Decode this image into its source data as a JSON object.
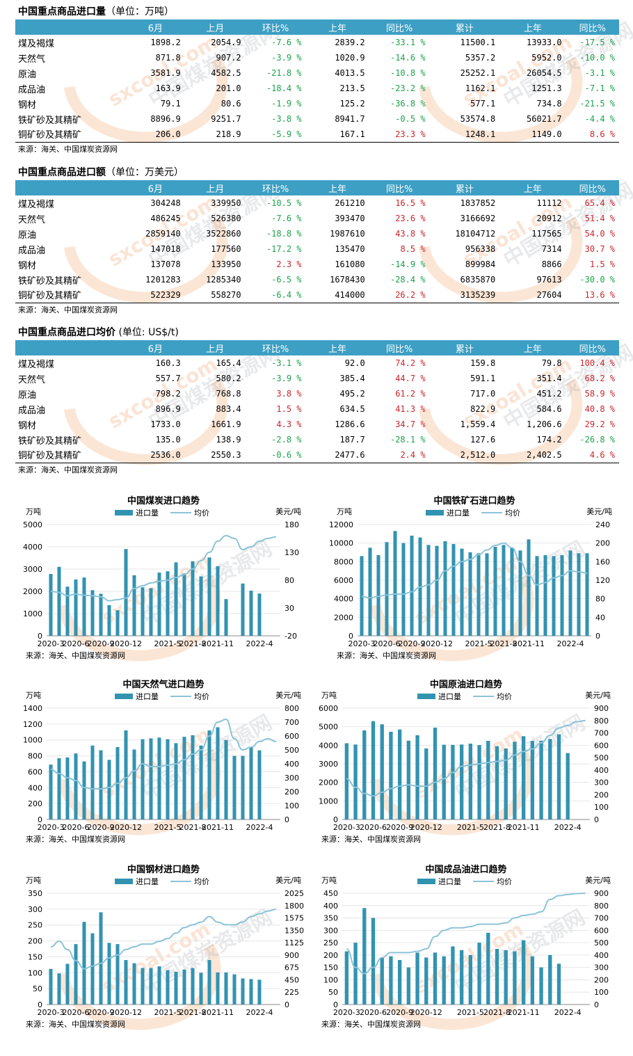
{
  "tables": [
    {
      "title": "中国重点商品进口量",
      "unit": "（单位：万吨）",
      "headers": [
        "",
        "6月",
        "上月",
        "环比%",
        "上年",
        "同比%",
        "累计",
        "上年",
        "同比%"
      ],
      "rows": [
        [
          "煤及褐煤",
          "1898.2",
          "2054.9",
          "-7.6 %",
          "2839.2",
          "-33.1 %",
          "11500.1",
          "13933.0",
          "-17.5 %"
        ],
        [
          "天然气",
          "871.8",
          "907.2",
          "-3.9 %",
          "1020.9",
          "-14.6 %",
          "5357.2",
          "5952.0",
          "-10.0 %"
        ],
        [
          "原油",
          "3581.9",
          "4582.5",
          "-21.8 %",
          "4013.5",
          "-10.8 %",
          "25252.1",
          "26054.5",
          "-3.1 %"
        ],
        [
          "成品油",
          "163.9",
          "201.0",
          "-18.4 %",
          "213.5",
          "-23.2 %",
          "1162.1",
          "1251.3",
          "-7.1 %"
        ],
        [
          "钢材",
          "79.1",
          "80.6",
          "-1.9 %",
          "125.2",
          "-36.8 %",
          "577.1",
          "734.8",
          "-21.5 %"
        ],
        [
          "铁矿砂及其精矿",
          "8896.9",
          "9251.7",
          "-3.8 %",
          "8941.7",
          "-0.5 %",
          "53574.8",
          "56021.7",
          "-4.4 %"
        ],
        [
          "铜矿砂及其精矿",
          "206.0",
          "218.9",
          "-5.9 %",
          "167.1",
          "23.3 %",
          "1248.1",
          "1149.0",
          "8.6 %"
        ]
      ],
      "source": "来源：海关、中国煤炭资源网"
    },
    {
      "title": "中国重点商品进口额",
      "unit": "（单位：万美元）",
      "headers": [
        "",
        "6月",
        "上月",
        "环比%",
        "上年",
        "同比%",
        "累计",
        "上年",
        "同比%"
      ],
      "rows": [
        [
          "煤及褐煤",
          "304248",
          "339950",
          "-10.5 %",
          "261210",
          "16.5 %",
          "1837852",
          "11112",
          "65.4 %"
        ],
        [
          "天然气",
          "486245",
          "526380",
          "-7.6 %",
          "393470",
          "23.6 %",
          "3166692",
          "20912",
          "51.4 %"
        ],
        [
          "原油",
          "2859140",
          "3522860",
          "-18.8 %",
          "1987610",
          "43.8 %",
          "18104712",
          "117565",
          "54.0 %"
        ],
        [
          "成品油",
          "147018",
          "177560",
          "-17.2 %",
          "135470",
          "8.5 %",
          "956338",
          "7314",
          "30.7 %"
        ],
        [
          "钢材",
          "137078",
          "133950",
          "2.3 %",
          "161080",
          "-14.9 %",
          "899984",
          "8866",
          "1.5 %"
        ],
        [
          "铁矿砂及其精矿",
          "1201283",
          "1285340",
          "-6.5 %",
          "1678430",
          "-28.4 %",
          "6835870",
          "97613",
          "-30.0 %"
        ],
        [
          "铜矿砂及其精矿",
          "522329",
          "558270",
          "-6.4 %",
          "414000",
          "26.2 %",
          "3135239",
          "27604",
          "13.6 %"
        ]
      ],
      "source": "来源：海关、中国煤炭资源网"
    },
    {
      "title": "中国重点商品进口均价",
      "unit": " (单位: US$/t)",
      "headers": [
        "",
        "6月",
        "上月",
        "环比%",
        "上年",
        "同比%",
        "累计",
        "上年",
        "同比%"
      ],
      "rows": [
        [
          "煤及褐煤",
          "160.3",
          "165.4",
          "-3.1 %",
          "92.0",
          "74.2 %",
          "159.8",
          "79.8",
          "100.4 %"
        ],
        [
          "天然气",
          "557.7",
          "580.2",
          "-3.9 %",
          "385.4",
          "44.7 %",
          "591.1",
          "351.4",
          "68.2 %"
        ],
        [
          "原油",
          "798.2",
          "768.8",
          "3.8 %",
          "495.2",
          "61.2 %",
          "717.0",
          "451.2",
          "58.9 %"
        ],
        [
          "成品油",
          "896.9",
          "883.4",
          "1.5 %",
          "634.5",
          "41.3 %",
          "822.9",
          "584.6",
          "40.8 %"
        ],
        [
          "钢材",
          "1733.0",
          "1661.9",
          "4.3 %",
          "1286.6",
          "34.7 %",
          "1,559.4",
          "1,206.6",
          "29.2 %"
        ],
        [
          "铁矿砂及其精矿",
          "135.0",
          "138.9",
          "-2.8 %",
          "187.7",
          "-28.1 %",
          "127.6",
          "174.2",
          "-26.8 %"
        ],
        [
          "铜矿砂及其精矿",
          "2536.0",
          "2550.3",
          "-0.6 %",
          "2477.6",
          "2.4 %",
          "2,512.0",
          "2,402.5",
          "4.6 %"
        ]
      ],
      "source": "来源：海关、中国煤炭资源网"
    }
  ],
  "watermark": {
    "text1": "sxcoal.com",
    "text2": "中国煤炭资源网"
  },
  "chart_data": [
    {
      "type": "bar",
      "title": "中国煤炭进口趋势",
      "ylabel": "万吨",
      "y2label": "美元/吨",
      "legend": [
        "进口量",
        "均价"
      ],
      "source": "来源：海关、中国煤炭资源网",
      "categories": [
        "2020-3",
        "2020-4",
        "2020-5",
        "2020-6",
        "2020-7",
        "2020-8",
        "2020-9",
        "2020-10",
        "2020-11",
        "2020-12",
        "2021-1",
        "2021-2",
        "2021-3",
        "2021-4",
        "2021-5",
        "2021-6",
        "2021-7",
        "2021-8",
        "2021-9",
        "2021-10",
        "2021-11",
        "2021-12",
        "2022-1",
        "2022-2",
        "2022-3",
        "2022-4",
        "2022-5",
        "2022-6"
      ],
      "tick_labels": [
        "2020-3",
        "2020-6",
        "2020-9",
        "2020-12",
        "2021-5",
        "2021-8",
        "2021-11",
        "2022-4"
      ],
      "series": [
        {
          "name": "进口量",
          "axis": "left",
          "values": [
            2780,
            3100,
            2210,
            2530,
            2620,
            2050,
            1890,
            1380,
            1150,
            3900,
            2720,
            2180,
            2140,
            2840,
            2900,
            3300,
            2800,
            3350,
            2670,
            3520,
            3130,
            1650,
            null,
            2350,
            2030,
            1900,
            null,
            null
          ]
        },
        {
          "name": "均价",
          "axis": "right",
          "values": [
            60,
            58,
            52,
            55,
            53,
            52,
            50,
            43,
            45,
            48,
            65,
            70,
            75,
            78,
            80,
            85,
            90,
            100,
            115,
            130,
            150,
            160,
            155,
            135,
            140,
            150,
            155,
            158
          ]
        }
      ],
      "ylim": [
        0,
        5000
      ],
      "y2lim": [
        -20,
        180
      ],
      "yticks": [
        0,
        1000,
        2000,
        3000,
        4000,
        5000
      ],
      "y2ticks": [
        -20,
        30,
        80,
        130,
        180
      ]
    },
    {
      "type": "bar",
      "title": "中国铁矿石进口趋势",
      "ylabel": "万吨",
      "y2label": "美元/吨",
      "legend": [
        "进口量",
        "均价"
      ],
      "source": "来源：海关、中国煤炭资源网",
      "categories": [
        "2020-3",
        "2020-4",
        "2020-5",
        "2020-6",
        "2020-7",
        "2020-8",
        "2020-9",
        "2020-10",
        "2020-11",
        "2020-12",
        "2021-1",
        "2021-2",
        "2021-3",
        "2021-4",
        "2021-5",
        "2021-6",
        "2021-7",
        "2021-8",
        "2021-9",
        "2021-10",
        "2021-11",
        "2021-12",
        "2022-1",
        "2022-2",
        "2022-3",
        "2022-4",
        "2022-5",
        "2022-6"
      ],
      "tick_labels": [
        "2020-3",
        "2020-6",
        "2020-9",
        "2020-12",
        "2021-5",
        "2021-8",
        "2021-11",
        "2022-4"
      ],
      "series": [
        {
          "name": "进口量",
          "axis": "left",
          "values": [
            8600,
            9500,
            8700,
            10100,
            11300,
            10000,
            10800,
            10600,
            9800,
            9700,
            10200,
            9900,
            9400,
            9000,
            8900,
            8900,
            9600,
            9800,
            9500,
            9200,
            10400,
            8600,
            8700,
            8600,
            8700,
            9200,
            8900,
            8900
          ]
        },
        {
          "name": "均价",
          "axis": "right",
          "values": [
            85,
            82,
            85,
            88,
            90,
            90,
            95,
            105,
            110,
            120,
            140,
            150,
            160,
            165,
            175,
            185,
            195,
            200,
            190,
            160,
            130,
            110,
            115,
            125,
            130,
            140,
            138,
            135
          ]
        }
      ],
      "ylim": [
        0,
        12000
      ],
      "y2lim": [
        0,
        240
      ],
      "yticks": [
        0,
        2000,
        4000,
        6000,
        8000,
        10000,
        12000
      ],
      "y2ticks": [
        0,
        40,
        80,
        120,
        160,
        200,
        240
      ]
    },
    {
      "type": "bar",
      "title": "中国天然气进口趋势",
      "ylabel": "万吨",
      "y2label": "美元/吨",
      "legend": [
        "进口量",
        "均价"
      ],
      "source": "来源：海关、中国煤炭资源网",
      "categories": [
        "2020-3",
        "2020-4",
        "2020-5",
        "2020-6",
        "2020-7",
        "2020-8",
        "2020-9",
        "2020-10",
        "2020-11",
        "2020-12",
        "2021-1",
        "2021-2",
        "2021-3",
        "2021-4",
        "2021-5",
        "2021-6",
        "2021-7",
        "2021-8",
        "2021-9",
        "2021-10",
        "2021-11",
        "2021-12",
        "2022-1",
        "2022-2",
        "2022-3",
        "2022-4",
        "2022-5",
        "2022-6"
      ],
      "tick_labels": [
        "2020-3",
        "2020-6",
        "2020-9",
        "2020-12",
        "2021-5",
        "2021-8",
        "2021-11",
        "2022-4"
      ],
      "series": [
        {
          "name": "进口量",
          "axis": "left",
          "values": [
            690,
            770,
            780,
            830,
            730,
            930,
            870,
            750,
            910,
            1120,
            880,
            1010,
            1020,
            1030,
            1010,
            960,
            1040,
            1060,
            930,
            1120,
            1160,
            1000,
            800,
            800,
            910,
            870,
            null,
            null
          ]
        },
        {
          "name": "均价",
          "axis": "right",
          "values": [
            360,
            330,
            300,
            280,
            230,
            220,
            220,
            230,
            260,
            300,
            350,
            400,
            380,
            380,
            390,
            400,
            430,
            470,
            500,
            600,
            700,
            720,
            580,
            500,
            520,
            560,
            580,
            560
          ]
        }
      ],
      "ylim": [
        0,
        1400
      ],
      "y2lim": [
        0,
        800
      ],
      "yticks": [
        0,
        200,
        400,
        600,
        800,
        1000,
        1200,
        1400
      ],
      "y2ticks": [
        0,
        100,
        200,
        300,
        400,
        500,
        600,
        700,
        800
      ]
    },
    {
      "type": "bar",
      "title": "中国原油进口趋势",
      "ylabel": "万吨",
      "y2label": "美元/吨",
      "legend": [
        "进口量",
        "均价"
      ],
      "source": "来源：海关、中国煤炭资源网",
      "categories": [
        "2020-3",
        "2020-4",
        "2020-5",
        "2020-6",
        "2020-7",
        "2020-8",
        "2020-9",
        "2020-10",
        "2020-11",
        "2020-12",
        "2021-1",
        "2021-2",
        "2021-3",
        "2021-4",
        "2021-5",
        "2021-6",
        "2021-7",
        "2021-8",
        "2021-9",
        "2021-10",
        "2021-11",
        "2021-12",
        "2022-1",
        "2022-2",
        "2022-3",
        "2022-4",
        "2022-5",
        "2022-6"
      ],
      "tick_labels": [
        "2020-3",
        "2020-6",
        "2020-9",
        "2020-12",
        "2021-5",
        "2021-8",
        "2021-11",
        "2022-4"
      ],
      "series": [
        {
          "name": "进口量",
          "axis": "left",
          "values": [
            4110,
            4040,
            4800,
            5300,
            5130,
            4730,
            4850,
            4250,
            4540,
            3830,
            4950,
            4030,
            4020,
            4040,
            4090,
            4010,
            4240,
            3950,
            3830,
            4190,
            4490,
            4240,
            4240,
            4340,
            4590,
            3580,
            null,
            null
          ]
        },
        {
          "name": "均价",
          "axis": "right",
          "values": [
            330,
            260,
            210,
            190,
            220,
            250,
            270,
            280,
            270,
            270,
            300,
            330,
            380,
            430,
            440,
            450,
            460,
            470,
            480,
            520,
            550,
            570,
            620,
            680,
            740,
            760,
            790,
            800
          ]
        }
      ],
      "ylim": [
        0,
        6000
      ],
      "y2lim": [
        0,
        900
      ],
      "yticks": [
        0,
        1000,
        2000,
        3000,
        4000,
        5000,
        6000
      ],
      "y2ticks": [
        0,
        100,
        200,
        300,
        400,
        500,
        600,
        700,
        800,
        900
      ]
    },
    {
      "type": "bar",
      "title": "中国钢材进口趋势",
      "ylabel": "万吨",
      "y2label": "美元/吨",
      "legend": [
        "进口量",
        "均价"
      ],
      "source": "来源：海关、中国煤炭资源网",
      "categories": [
        "2020-3",
        "2020-4",
        "2020-5",
        "2020-6",
        "2020-7",
        "2020-8",
        "2020-9",
        "2020-10",
        "2020-11",
        "2020-12",
        "2021-1",
        "2021-2",
        "2021-3",
        "2021-4",
        "2021-5",
        "2021-6",
        "2021-7",
        "2021-8",
        "2021-9",
        "2021-10",
        "2021-11",
        "2021-12",
        "2022-1",
        "2022-2",
        "2022-3",
        "2022-4",
        "2022-5",
        "2022-6"
      ],
      "tick_labels": [
        "2020-3",
        "2020-6",
        "2020-9",
        "2020-12",
        "2021-5",
        "2021-8",
        "2021-11",
        "2022-4"
      ],
      "series": [
        {
          "name": "进口量",
          "axis": "left",
          "values": [
            112,
            98,
            128,
            190,
            260,
            224,
            290,
            194,
            190,
            140,
            130,
            115,
            115,
            120,
            108,
            103,
            110,
            115,
            100,
            140,
            101,
            101,
            95,
            82,
            80,
            78,
            null,
            null
          ]
        },
        {
          "name": "均价",
          "axis": "right",
          "values": [
            1050,
            1150,
            1000,
            800,
            650,
            700,
            750,
            850,
            900,
            1000,
            1050,
            1100,
            1100,
            1150,
            1200,
            1300,
            1400,
            1450,
            1500,
            1600,
            1500,
            1450,
            1450,
            1500,
            1600,
            1650,
            1700,
            1733
          ]
        }
      ],
      "ylim": [
        0,
        350
      ],
      "y2lim": [
        0,
        2025
      ],
      "yticks": [
        0,
        50,
        100,
        150,
        200,
        250,
        300,
        350
      ],
      "y2ticks": [
        0,
        225,
        450,
        675,
        900,
        1125,
        1350,
        1575,
        1800,
        2025
      ]
    },
    {
      "type": "bar",
      "title": "中国成品油进口趋势",
      "ylabel": "万吨",
      "y2label": "美元/吨",
      "legend": [
        "进口量",
        "均价"
      ],
      "source": "来源：海关、中国煤炭资源网",
      "categories": [
        "2020-3",
        "2020-4",
        "2020-5",
        "2020-6",
        "2020-7",
        "2020-8",
        "2020-9",
        "2020-10",
        "2020-11",
        "2020-12",
        "2021-1",
        "2021-2",
        "2021-3",
        "2021-4",
        "2021-5",
        "2021-6",
        "2021-7",
        "2021-8",
        "2021-9",
        "2021-10",
        "2021-11",
        "2021-12",
        "2022-1",
        "2022-2",
        "2022-3",
        "2022-4",
        "2022-5",
        "2022-6"
      ],
      "tick_labels": [
        "2020-3",
        "2020-6",
        "2020-9",
        "2020-12",
        "2021-5",
        "2021-8",
        "2021-11",
        "2022-4"
      ],
      "series": [
        {
          "name": "进口量",
          "axis": "left",
          "values": [
            215,
            250,
            390,
            350,
            190,
            195,
            180,
            150,
            210,
            190,
            210,
            195,
            235,
            220,
            200,
            250,
            290,
            225,
            220,
            215,
            260,
            195,
            150,
            200,
            165,
            null,
            null,
            null
          ]
        },
        {
          "name": "均价",
          "axis": "right",
          "values": [
            450,
            300,
            250,
            300,
            380,
            420,
            420,
            420,
            430,
            450,
            550,
            600,
            620,
            620,
            630,
            650,
            650,
            650,
            660,
            700,
            720,
            730,
            750,
            850,
            880,
            890,
            897,
            900
          ]
        }
      ],
      "ylim": [
        0,
        450
      ],
      "y2lim": [
        0,
        900
      ],
      "yticks": [
        0,
        50,
        100,
        150,
        200,
        250,
        300,
        350,
        400,
        450
      ],
      "y2ticks": [
        0,
        100,
        200,
        300,
        400,
        500,
        600,
        700,
        800,
        900
      ]
    }
  ]
}
